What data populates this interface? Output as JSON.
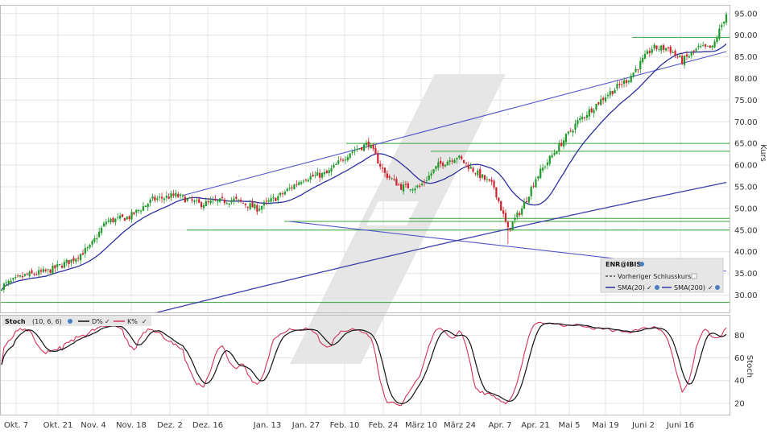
{
  "chart_data": [
    {
      "type": "candlestick",
      "symbol_label": "ENR@IBIS",
      "ylabel": "Kurs",
      "ylim": [
        26,
        97
      ],
      "yticks": [
        30,
        35,
        40,
        45,
        50,
        55,
        60,
        65,
        70,
        75,
        80,
        85,
        90,
        95
      ],
      "yticks_labels": [
        "30.00",
        "35.00",
        "40.00",
        "45.00",
        "50.00",
        "55.00",
        "60.00",
        "65.00",
        "70.00",
        "75.00",
        "80.00",
        "85.00",
        "90.00",
        "95.00"
      ],
      "x_tick_labels": [
        "Okt. 7",
        "Okt. 21",
        "Nov. 4",
        "Nov. 18",
        "Dez. 2",
        "Dez. 16",
        "Jan. 13",
        "Jan. 27",
        "Feb. 10",
        "Feb. 24",
        "März 10",
        "März 24",
        "Apr. 7",
        "Apr. 21",
        "Mai 5",
        "Mai 19",
        "Juni 2",
        "Juni 16"
      ],
      "close_anchors": [
        [
          0,
          32
        ],
        [
          10,
          34.5
        ],
        [
          20,
          35.5
        ],
        [
          30,
          38
        ],
        [
          38,
          41
        ],
        [
          45,
          47
        ],
        [
          55,
          48
        ],
        [
          65,
          52
        ],
        [
          75,
          53
        ],
        [
          85,
          51
        ],
        [
          100,
          52
        ],
        [
          110,
          50
        ],
        [
          120,
          53
        ],
        [
          130,
          57
        ],
        [
          140,
          58
        ],
        [
          150,
          63
        ],
        [
          158,
          65
        ],
        [
          165,
          58
        ],
        [
          172,
          55
        ],
        [
          180,
          55
        ],
        [
          188,
          60
        ],
        [
          196,
          62
        ],
        [
          205,
          58
        ],
        [
          212,
          55
        ],
        [
          218,
          45
        ],
        [
          224,
          50
        ],
        [
          230,
          57
        ],
        [
          238,
          63
        ],
        [
          248,
          70
        ],
        [
          260,
          76
        ],
        [
          270,
          80
        ],
        [
          280,
          87
        ],
        [
          287,
          87
        ],
        [
          293,
          84
        ],
        [
          300,
          87
        ],
        [
          306,
          87
        ],
        [
          312,
          95
        ]
      ],
      "series": [
        {
          "name": "SMA(20)",
          "color": "#2c2f9c"
        },
        {
          "name": "SMA(200)",
          "color": "#3a3ea8"
        }
      ],
      "prev_close_label": "Vorheriger Schlusskurs",
      "up_color": "#1e9a2a",
      "down_color": "#d2202c",
      "horizontal_levels": [
        89.5,
        65,
        63.2,
        47.7,
        47,
        45,
        28.3
      ],
      "trendlines": [
        {
          "from": [
            78,
            53
          ],
          "to": [
            312,
            86.2
          ]
        },
        {
          "from": [
            124,
            47
          ],
          "to": [
            312,
            35.5
          ]
        }
      ]
    },
    {
      "type": "line",
      "indicator_label": "Stoch",
      "params_label": "(10, 6, 6)",
      "ylabel": "Stoch",
      "ylim": [
        10,
        98
      ],
      "yticks": [
        20,
        40,
        60,
        80
      ],
      "series": [
        {
          "name": "D%",
          "color": "#111111"
        },
        {
          "name": "K%",
          "color": "#d2325a"
        }
      ]
    }
  ]
}
